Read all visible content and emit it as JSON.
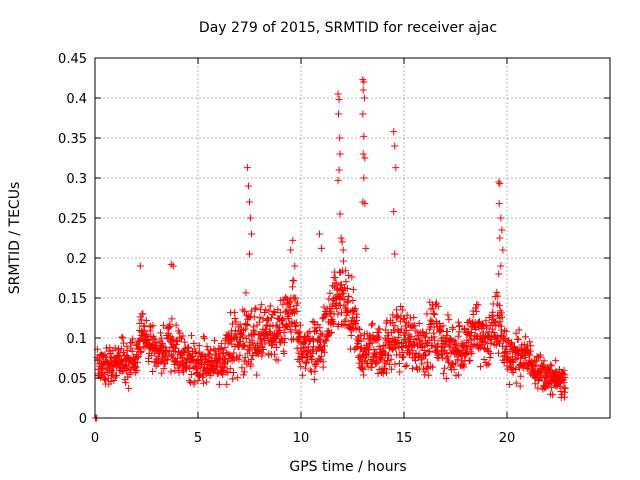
{
  "chart_data": {
    "type": "scatter",
    "title": "Day 279 of 2015, SRMTID for receiver ajac",
    "xlabel": "GPS time / hours",
    "ylabel": "SRMTID / TECUs",
    "xlim": [
      0,
      25
    ],
    "ylim": [
      0,
      0.45
    ],
    "xticks": [
      0,
      5,
      10,
      15,
      20
    ],
    "xtick_labels": [
      "0",
      "5",
      "10",
      "15",
      "20"
    ],
    "yticks": [
      0,
      0.05,
      0.1,
      0.15,
      0.2,
      0.25,
      0.3,
      0.35,
      0.4,
      0.45
    ],
    "ytick_labels": [
      "0",
      "0.05",
      "0.1",
      "0.15",
      "0.2",
      "0.25",
      "0.3",
      "0.35",
      "0.4",
      "0.45"
    ],
    "grid": true,
    "marker": "+",
    "color": "#ff0000",
    "series": [
      {
        "name": "SRMTID",
        "points": [
          [
            0.02,
            0.0
          ],
          [
            0.05,
            0.0
          ],
          [
            0.08,
            0.0
          ],
          [
            7.4,
            0.313
          ],
          [
            7.45,
            0.29
          ],
          [
            7.5,
            0.27
          ],
          [
            7.55,
            0.25
          ],
          [
            7.6,
            0.23
          ],
          [
            7.5,
            0.205
          ],
          [
            9.6,
            0.222
          ],
          [
            9.5,
            0.21
          ],
          [
            9.7,
            0.19
          ],
          [
            10.9,
            0.23
          ],
          [
            11.0,
            0.212
          ],
          [
            11.8,
            0.405
          ],
          [
            11.85,
            0.398
          ],
          [
            11.82,
            0.38
          ],
          [
            11.88,
            0.35
          ],
          [
            11.9,
            0.33
          ],
          [
            11.85,
            0.31
          ],
          [
            11.8,
            0.297
          ],
          [
            11.9,
            0.255
          ],
          [
            11.95,
            0.225
          ],
          [
            12.0,
            0.22
          ],
          [
            12.05,
            0.21
          ],
          [
            13.0,
            0.423
          ],
          [
            13.05,
            0.42
          ],
          [
            13.02,
            0.41
          ],
          [
            13.08,
            0.4
          ],
          [
            13.0,
            0.38
          ],
          [
            13.05,
            0.352
          ],
          [
            13.02,
            0.33
          ],
          [
            13.1,
            0.325
          ],
          [
            13.05,
            0.3
          ],
          [
            13.0,
            0.27
          ],
          [
            13.1,
            0.268
          ],
          [
            13.15,
            0.212
          ],
          [
            14.5,
            0.358
          ],
          [
            14.55,
            0.34
          ],
          [
            14.6,
            0.313
          ],
          [
            14.5,
            0.258
          ],
          [
            14.55,
            0.205
          ],
          [
            19.6,
            0.295
          ],
          [
            19.65,
            0.293
          ],
          [
            19.62,
            0.268
          ],
          [
            19.7,
            0.25
          ],
          [
            19.75,
            0.235
          ],
          [
            19.65,
            0.225
          ],
          [
            19.8,
            0.21
          ],
          [
            19.7,
            0.19
          ],
          [
            19.6,
            0.18
          ],
          [
            3.7,
            0.192
          ],
          [
            3.8,
            0.19
          ],
          [
            2.2,
            0.19
          ]
        ],
        "envelope_hours": [
          0,
          1,
          2,
          2.3,
          3,
          3.8,
          4.5,
          5,
          6,
          6.5,
          7.3,
          8,
          9,
          9.6,
          10,
          11,
          11.5,
          12,
          12.5,
          13,
          13.5,
          14,
          14.5,
          15,
          16,
          16.5,
          17,
          18,
          18.5,
          19,
          19.6,
          20,
          21,
          22,
          22.8
        ],
        "envelope_median": [
          0.065,
          0.07,
          0.075,
          0.11,
          0.08,
          0.09,
          0.075,
          0.07,
          0.065,
          0.09,
          0.1,
          0.1,
          0.11,
          0.14,
          0.085,
          0.09,
          0.13,
          0.15,
          0.12,
          0.075,
          0.09,
          0.08,
          0.1,
          0.1,
          0.09,
          0.11,
          0.085,
          0.09,
          0.11,
          0.095,
          0.12,
          0.08,
          0.075,
          0.05,
          0.045
        ],
        "envelope_spread": [
          0.025,
          0.03,
          0.03,
          0.04,
          0.03,
          0.04,
          0.03,
          0.03,
          0.025,
          0.04,
          0.05,
          0.04,
          0.04,
          0.05,
          0.035,
          0.04,
          0.05,
          0.05,
          0.05,
          0.03,
          0.035,
          0.035,
          0.045,
          0.045,
          0.04,
          0.045,
          0.04,
          0.04,
          0.045,
          0.04,
          0.05,
          0.035,
          0.03,
          0.02,
          0.02
        ],
        "sample_count": 1800,
        "time_range": [
          0.1,
          22.85
        ]
      }
    ]
  }
}
